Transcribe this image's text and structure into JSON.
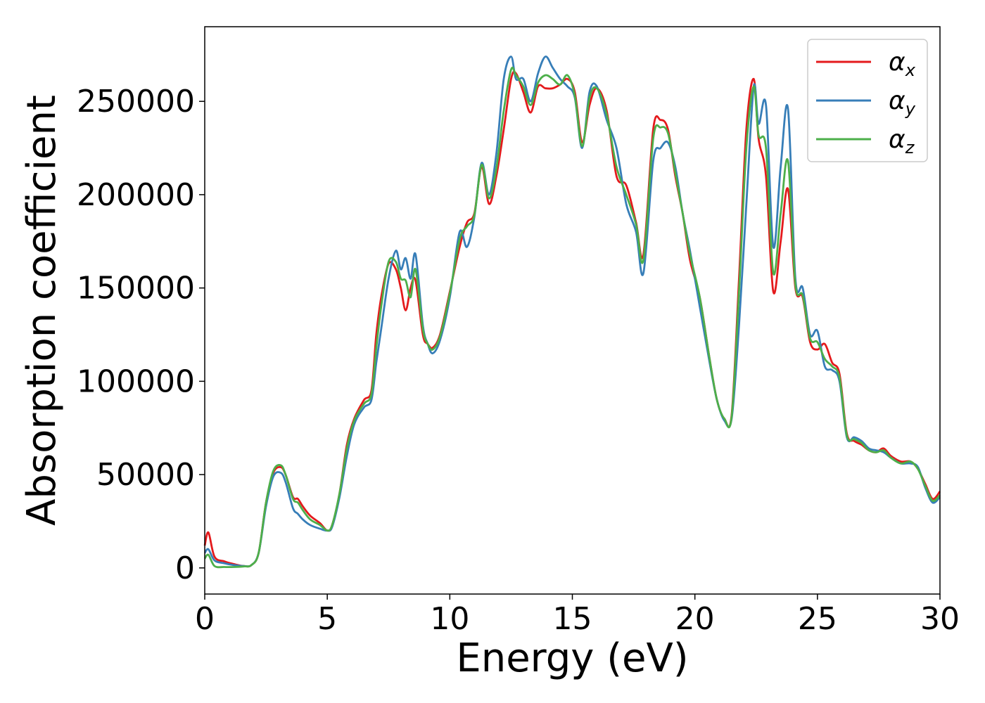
{
  "chart_data": {
    "type": "line",
    "title": "",
    "xlabel": "Energy (eV)",
    "ylabel": "Absorption coefficient",
    "xlim": [
      0,
      30
    ],
    "ylim": [
      -14000,
      290000
    ],
    "x_ticks": [
      0,
      5,
      10,
      15,
      20,
      25,
      30
    ],
    "x_tick_labels": [
      "0",
      "5",
      "10",
      "15",
      "20",
      "25",
      "30"
    ],
    "y_ticks": [
      0,
      50000,
      100000,
      150000,
      200000,
      250000
    ],
    "y_tick_labels": [
      "0",
      "50000",
      "100000",
      "150000",
      "200000",
      "250000"
    ],
    "grid": false,
    "legend_position": "top-right",
    "series": [
      {
        "name": "α",
        "subscript": "x",
        "color": "#e41a1c",
        "x": [
          0.0,
          0.15,
          0.4,
          0.8,
          1.2,
          1.6,
          1.9,
          2.2,
          2.5,
          2.8,
          3.1,
          3.3,
          3.6,
          3.8,
          4.0,
          4.3,
          4.7,
          5.0,
          5.2,
          5.5,
          5.8,
          6.1,
          6.5,
          6.8,
          7.0,
          7.2,
          7.5,
          7.8,
          8.0,
          8.2,
          8.4,
          8.6,
          8.9,
          9.1,
          9.3,
          9.6,
          10.0,
          10.4,
          10.7,
          11.0,
          11.3,
          11.6,
          11.9,
          12.2,
          12.5,
          12.7,
          13.0,
          13.3,
          13.6,
          13.9,
          14.2,
          14.5,
          14.8,
          15.1,
          15.4,
          15.7,
          16.0,
          16.4,
          16.8,
          17.2,
          17.6,
          17.9,
          18.3,
          18.6,
          18.9,
          19.2,
          19.5,
          19.8,
          20.2,
          20.6,
          20.9,
          21.2,
          21.5,
          21.8,
          22.1,
          22.4,
          22.6,
          22.9,
          23.2,
          23.5,
          23.8,
          24.1,
          24.4,
          24.7,
          25.0,
          25.3,
          25.6,
          25.9,
          26.2,
          26.5,
          26.8,
          27.1,
          27.4,
          27.7,
          28.0,
          28.4,
          28.8,
          29.1,
          29.4,
          29.7,
          30.0
        ],
        "y": [
          12000,
          19000,
          6000,
          3500,
          2000,
          1000,
          1500,
          8000,
          35000,
          51000,
          54000,
          50000,
          38000,
          37000,
          33000,
          28000,
          24000,
          20000,
          23000,
          40000,
          66000,
          80000,
          90000,
          95000,
          125000,
          145000,
          163000,
          160000,
          150000,
          138000,
          150000,
          154000,
          125000,
          120000,
          118000,
          125000,
          148000,
          172000,
          185000,
          190000,
          215000,
          195000,
          210000,
          235000,
          262000,
          265000,
          255000,
          244000,
          258000,
          257000,
          257000,
          259000,
          262000,
          255000,
          228000,
          248000,
          257000,
          245000,
          210000,
          205000,
          185000,
          168000,
          235000,
          240000,
          235000,
          210000,
          190000,
          165000,
          145000,
          112000,
          90000,
          80000,
          82000,
          155000,
          235000,
          262000,
          230000,
          210000,
          148000,
          175000,
          203000,
          150000,
          145000,
          121000,
          117000,
          120000,
          110000,
          104000,
          72000,
          68000,
          66000,
          63000,
          62000,
          64000,
          60000,
          57000,
          57000,
          53000,
          45000,
          37000,
          41000
        ]
      },
      {
        "name": "α",
        "subscript": "y",
        "color": "#377eb8",
        "x": [
          0.0,
          0.15,
          0.4,
          0.8,
          1.2,
          1.6,
          1.9,
          2.2,
          2.5,
          2.8,
          3.1,
          3.3,
          3.6,
          3.8,
          4.0,
          4.3,
          4.7,
          5.0,
          5.2,
          5.5,
          5.8,
          6.1,
          6.5,
          6.8,
          7.0,
          7.2,
          7.5,
          7.8,
          8.0,
          8.2,
          8.4,
          8.6,
          8.9,
          9.1,
          9.3,
          9.6,
          10.0,
          10.4,
          10.7,
          11.0,
          11.3,
          11.6,
          11.9,
          12.2,
          12.5,
          12.7,
          13.0,
          13.3,
          13.6,
          13.9,
          14.2,
          14.5,
          14.8,
          15.1,
          15.4,
          15.7,
          16.0,
          16.4,
          16.8,
          17.2,
          17.6,
          17.9,
          18.3,
          18.6,
          18.9,
          19.2,
          19.5,
          19.8,
          20.2,
          20.6,
          20.9,
          21.2,
          21.5,
          21.8,
          22.1,
          22.4,
          22.6,
          22.9,
          23.2,
          23.5,
          23.8,
          24.1,
          24.4,
          24.7,
          25.0,
          25.3,
          25.6,
          25.9,
          26.2,
          26.5,
          26.8,
          27.1,
          27.4,
          27.7,
          28.0,
          28.4,
          28.8,
          29.1,
          29.4,
          29.7,
          30.0
        ],
        "y": [
          8000,
          10000,
          4000,
          2500,
          1500,
          1000,
          1500,
          8000,
          33000,
          49000,
          51000,
          46000,
          32000,
          29000,
          26000,
          23000,
          21000,
          20000,
          22000,
          38000,
          60000,
          77000,
          86000,
          90000,
          110000,
          128000,
          155000,
          170000,
          160000,
          166000,
          155000,
          168000,
          130000,
          120000,
          115000,
          122000,
          145000,
          180000,
          172000,
          188000,
          217000,
          200000,
          222000,
          262000,
          274000,
          262000,
          262000,
          250000,
          265000,
          274000,
          268000,
          262000,
          258000,
          252000,
          225000,
          255000,
          258000,
          240000,
          225000,
          195000,
          180000,
          158000,
          218000,
          225000,
          228000,
          215000,
          190000,
          170000,
          140000,
          110000,
          90000,
          79000,
          80000,
          130000,
          195000,
          258000,
          238000,
          248000,
          172000,
          215000,
          246000,
          155000,
          150000,
          125000,
          127000,
          108000,
          106000,
          100000,
          70000,
          70000,
          68000,
          64000,
          63000,
          62000,
          59000,
          56000,
          56000,
          54000,
          43000,
          35000,
          38000
        ]
      },
      {
        "name": "α",
        "subscript": "z",
        "color": "#4daf4a",
        "x": [
          0.0,
          0.15,
          0.4,
          0.8,
          1.2,
          1.6,
          1.9,
          2.2,
          2.5,
          2.8,
          3.1,
          3.3,
          3.6,
          3.8,
          4.0,
          4.3,
          4.7,
          5.0,
          5.2,
          5.5,
          5.8,
          6.1,
          6.5,
          6.8,
          7.0,
          7.2,
          7.5,
          7.8,
          8.0,
          8.2,
          8.4,
          8.6,
          8.9,
          9.1,
          9.3,
          9.6,
          10.0,
          10.4,
          10.7,
          11.0,
          11.3,
          11.6,
          11.9,
          12.2,
          12.5,
          12.7,
          13.0,
          13.3,
          13.6,
          13.9,
          14.2,
          14.5,
          14.8,
          15.1,
          15.4,
          15.7,
          16.0,
          16.4,
          16.8,
          17.2,
          17.6,
          17.9,
          18.3,
          18.6,
          18.9,
          19.2,
          19.5,
          19.8,
          20.2,
          20.6,
          20.9,
          21.2,
          21.5,
          21.8,
          22.1,
          22.4,
          22.6,
          22.9,
          23.2,
          23.5,
          23.8,
          24.1,
          24.4,
          24.7,
          25.0,
          25.3,
          25.6,
          25.9,
          26.2,
          26.5,
          26.8,
          27.1,
          27.4,
          27.7,
          28.0,
          28.4,
          28.8,
          29.1,
          29.4,
          29.7,
          30.0
        ],
        "y": [
          5000,
          7000,
          1000,
          500,
          500,
          800,
          1500,
          8000,
          35000,
          52000,
          55000,
          50000,
          37000,
          35000,
          31000,
          26000,
          23000,
          20000,
          23000,
          40000,
          64000,
          79000,
          88000,
          93000,
          118000,
          140000,
          164000,
          164000,
          155000,
          154000,
          145000,
          160000,
          128000,
          120000,
          117000,
          124000,
          147000,
          176000,
          183000,
          189000,
          216000,
          198000,
          214000,
          245000,
          267000,
          264000,
          258000,
          248000,
          260000,
          264000,
          262000,
          259000,
          264000,
          253000,
          226000,
          252000,
          257000,
          243000,
          215000,
          200000,
          184000,
          165000,
          230000,
          236000,
          233000,
          212000,
          190000,
          168000,
          145000,
          112000,
          90000,
          80000,
          81000,
          148000,
          225000,
          258000,
          232000,
          225000,
          158000,
          190000,
          218000,
          152000,
          146000,
          123000,
          121000,
          112000,
          108000,
          102000,
          71000,
          69000,
          67000,
          63000,
          62000,
          63000,
          59000,
          56000,
          57000,
          53000,
          44000,
          36000,
          39000
        ]
      }
    ]
  }
}
